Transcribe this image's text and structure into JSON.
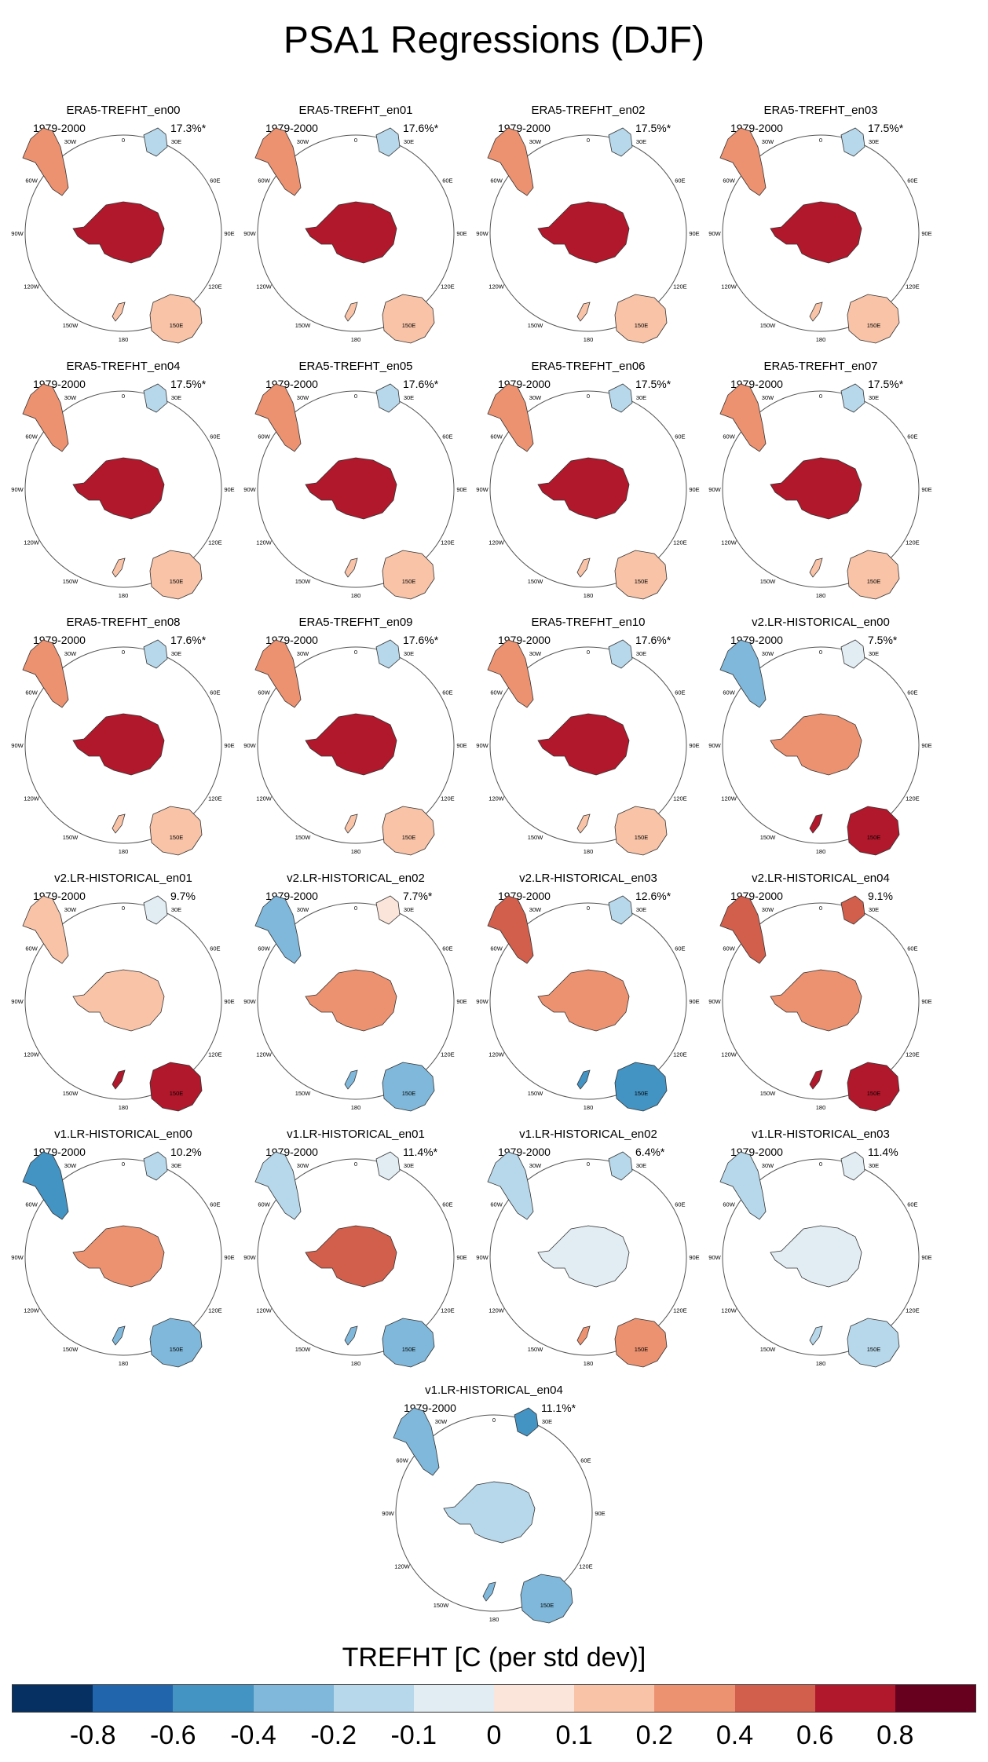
{
  "title": "PSA1 Regressions (DJF)",
  "chart_data": {
    "type": "polar-map-panels",
    "projection": "South polar stereographic",
    "variable": "TREFHT",
    "season": "DJF",
    "period": "1979-2000",
    "longitude_labels": [
      "0",
      "30E",
      "60E",
      "90E",
      "120E",
      "150E",
      "180",
      "150W",
      "120W",
      "90W",
      "60W",
      "30W"
    ],
    "panels": [
      {
        "title": "ERA5-TREFHT_en00",
        "years": "1979-2000",
        "pct": "17.3%*",
        "ant": 0.6,
        "aus": 0.15,
        "sam": 0.2,
        "afr": -0.2
      },
      {
        "title": "ERA5-TREFHT_en01",
        "years": "1979-2000",
        "pct": "17.6%*",
        "ant": 0.6,
        "aus": 0.15,
        "sam": 0.2,
        "afr": -0.2
      },
      {
        "title": "ERA5-TREFHT_en02",
        "years": "1979-2000",
        "pct": "17.5%*",
        "ant": 0.6,
        "aus": 0.15,
        "sam": 0.2,
        "afr": -0.2
      },
      {
        "title": "ERA5-TREFHT_en03",
        "years": "1979-2000",
        "pct": "17.5%*",
        "ant": 0.6,
        "aus": 0.15,
        "sam": 0.2,
        "afr": -0.2
      },
      {
        "title": "ERA5-TREFHT_en04",
        "years": "1979-2000",
        "pct": "17.5%*",
        "ant": 0.6,
        "aus": 0.15,
        "sam": 0.2,
        "afr": -0.2
      },
      {
        "title": "ERA5-TREFHT_en05",
        "years": "1979-2000",
        "pct": "17.6%*",
        "ant": 0.6,
        "aus": 0.15,
        "sam": 0.2,
        "afr": -0.2
      },
      {
        "title": "ERA5-TREFHT_en06",
        "years": "1979-2000",
        "pct": "17.5%*",
        "ant": 0.6,
        "aus": 0.15,
        "sam": 0.2,
        "afr": -0.2
      },
      {
        "title": "ERA5-TREFHT_en07",
        "years": "1979-2000",
        "pct": "17.5%*",
        "ant": 0.6,
        "aus": 0.15,
        "sam": 0.2,
        "afr": -0.2
      },
      {
        "title": "ERA5-TREFHT_en08",
        "years": "1979-2000",
        "pct": "17.6%*",
        "ant": 0.6,
        "aus": 0.15,
        "sam": 0.2,
        "afr": -0.2
      },
      {
        "title": "ERA5-TREFHT_en09",
        "years": "1979-2000",
        "pct": "17.6%*",
        "ant": 0.6,
        "aus": 0.15,
        "sam": 0.2,
        "afr": -0.2
      },
      {
        "title": "ERA5-TREFHT_en10",
        "years": "1979-2000",
        "pct": "17.6%*",
        "ant": 0.6,
        "aus": 0.15,
        "sam": 0.2,
        "afr": -0.2
      },
      {
        "title": "v2.LR-HISTORICAL_en00",
        "years": "1979-2000",
        "pct": "7.5%*",
        "ant": 0.2,
        "aus": 0.6,
        "sam": -0.4,
        "afr": -0.1
      },
      {
        "title": "v2.LR-HISTORICAL_en01",
        "years": "1979-2000",
        "pct": "9.7%",
        "ant": 0.1,
        "aus": 0.6,
        "sam": 0.1,
        "afr": -0.1
      },
      {
        "title": "v2.LR-HISTORICAL_en02",
        "years": "1979-2000",
        "pct": "7.7%*",
        "ant": 0.2,
        "aus": -0.4,
        "sam": -0.4,
        "afr": 0.05
      },
      {
        "title": "v2.LR-HISTORICAL_en03",
        "years": "1979-2000",
        "pct": "12.6%*",
        "ant": 0.2,
        "aus": -0.6,
        "sam": 0.4,
        "afr": -0.2
      },
      {
        "title": "v2.LR-HISTORICAL_en04",
        "years": "1979-2000",
        "pct": "9.1%",
        "ant": 0.2,
        "aus": 0.6,
        "sam": 0.4,
        "afr": 0.4
      },
      {
        "title": "v1.LR-HISTORICAL_en00",
        "years": "1979-2000",
        "pct": "10.2%",
        "ant": 0.2,
        "aus": -0.4,
        "sam": -0.6,
        "afr": -0.2
      },
      {
        "title": "v1.LR-HISTORICAL_en01",
        "years": "1979-2000",
        "pct": "11.4%*",
        "ant": 0.4,
        "aus": -0.4,
        "sam": -0.2,
        "afr": -0.1
      },
      {
        "title": "v1.LR-HISTORICAL_en02",
        "years": "1979-2000",
        "pct": "6.4%*",
        "ant": -0.05,
        "aus": 0.2,
        "sam": -0.2,
        "afr": -0.2
      },
      {
        "title": "v1.LR-HISTORICAL_en03",
        "years": "1979-2000",
        "pct": "11.4%",
        "ant": -0.05,
        "aus": -0.2,
        "sam": -0.2,
        "afr": -0.1
      },
      {
        "title": "v1.LR-HISTORICAL_en04",
        "years": "1979-2000",
        "pct": "11.1%*",
        "ant": -0.2,
        "aus": -0.4,
        "sam": -0.4,
        "afr": -0.6
      }
    ],
    "colorbar": {
      "title": "TREFHT [C (per std dev)]",
      "ticks": [
        "-0.8",
        "-0.6",
        "-0.4",
        "-0.2",
        "-0.1",
        "0",
        "0.1",
        "0.2",
        "0.4",
        "0.6",
        "0.8"
      ],
      "colors": [
        "#053061",
        "#2166ac",
        "#4393c3",
        "#7fb8da",
        "#b7d8ea",
        "#e1ecf3",
        "#fbe5da",
        "#f8c3a7",
        "#ec9270",
        "#d25f4c",
        "#b2182b",
        "#67001f"
      ]
    }
  }
}
